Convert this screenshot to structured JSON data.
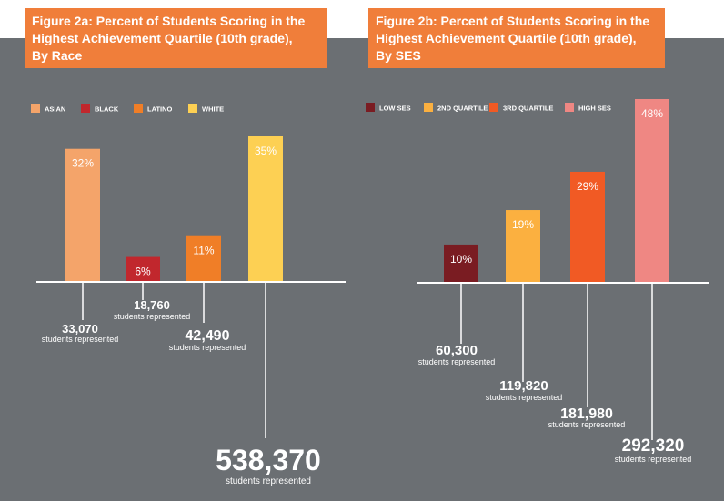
{
  "chart_data": [
    {
      "type": "bar",
      "title": "Figure 2a: Percent of Students Scoring in the\nHighest Achievement Quartile (10th grade),\nBy Race",
      "categories": [
        "ASIAN",
        "BLACK",
        "LATINO",
        "WHITE"
      ],
      "values": [
        32,
        6,
        11,
        35
      ],
      "value_labels": [
        "32%",
        "6%",
        "11%",
        "35%"
      ],
      "counts": [
        "33,070",
        "18,760",
        "42,490",
        "538,370"
      ],
      "counts_caption": "students represented",
      "colors": [
        "#f4a46a",
        "#c1272d",
        "#f07e27",
        "#fdd053"
      ],
      "ylim": [
        0,
        35
      ],
      "legend_position": "top-left",
      "grid": false
    },
    {
      "type": "bar",
      "title": "Figure 2b: Percent of Students Scoring in the\nHighest Achievement Quartile (10th grade),\nBy SES",
      "categories": [
        "LOW SES",
        "2ND QUARTILE",
        "3RD QUARTILE",
        "HIGH SES"
      ],
      "values": [
        10,
        19,
        29,
        48
      ],
      "value_labels": [
        "10%",
        "19%",
        "29%",
        "48%"
      ],
      "counts": [
        "60,300",
        "119,820",
        "181,980",
        "292,320"
      ],
      "counts_caption": "students represented",
      "colors": [
        "#7a1c22",
        "#fbb040",
        "#f15a24",
        "#ef8783"
      ],
      "ylim": [
        0,
        48
      ],
      "legend_position": "top-left",
      "grid": false
    }
  ],
  "colors": {
    "background": "#6b6f73",
    "title_bg": "#f07e3a",
    "text": "#ffffff"
  }
}
